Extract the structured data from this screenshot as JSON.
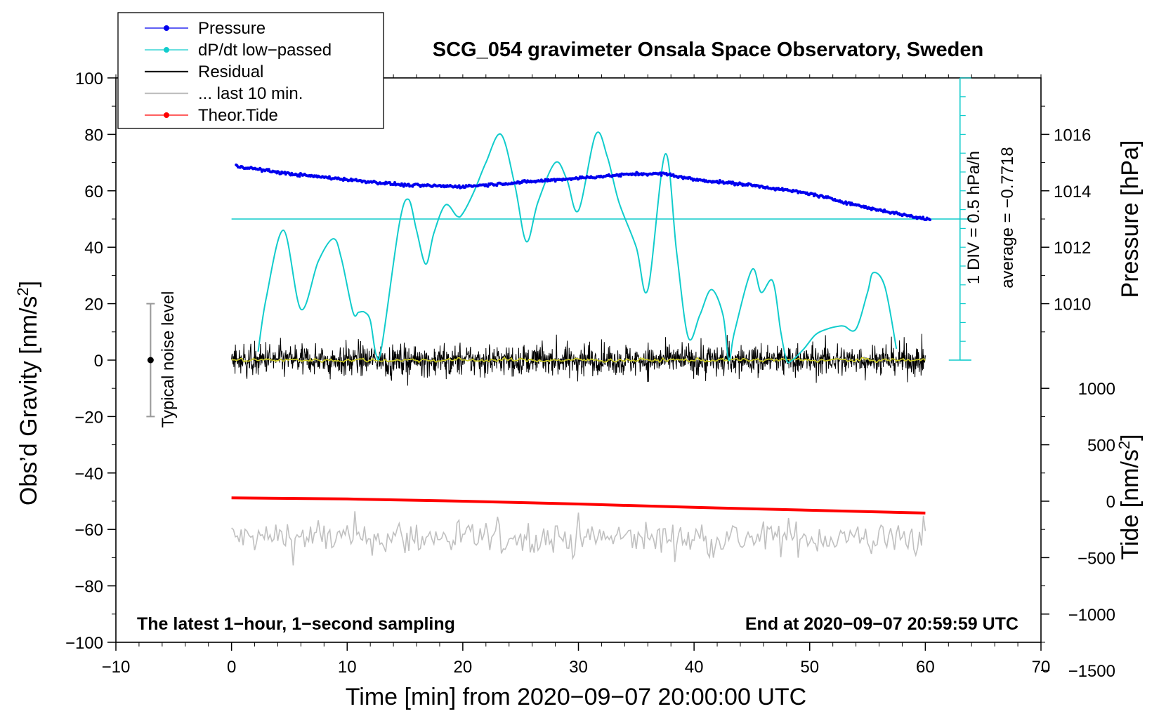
{
  "chart_data": {
    "type": "line",
    "title": "SCG_054 gravimeter Onsala Space Observatory, Sweden",
    "xlabel": "Time [min] from 2020−09−07 20:00:00 UTC",
    "xlim": [
      -10,
      70
    ],
    "x_ticks": [
      "−10",
      "0",
      "10",
      "20",
      "30",
      "40",
      "50",
      "60",
      "70"
    ],
    "x_tick_values": [
      -10,
      0,
      10,
      20,
      30,
      40,
      50,
      60,
      70
    ],
    "left_axis": {
      "label": "Obs’d Gravity [nm/s",
      "label_sup": "2",
      "label_end": "]",
      "ylim": [
        -100,
        100
      ],
      "ticks": [
        "−100",
        "−80",
        "−60",
        "−40",
        "−20",
        "0",
        "20",
        "40",
        "60",
        "80",
        "100"
      ],
      "tick_values": [
        -100,
        -80,
        -60,
        -40,
        -20,
        0,
        20,
        40,
        60,
        80,
        100
      ]
    },
    "pressure_axis": {
      "label": "Pressure [hPa]",
      "ticks": [
        "1010",
        "1012",
        "1014",
        "1016"
      ],
      "tick_values": [
        1010,
        1012,
        1014,
        1016
      ],
      "gravity_at_1010": 20,
      "gravity_per_hpa": 10
    },
    "tide_axis": {
      "label": "Tide [nm/s",
      "label_sup": "2",
      "label_end": "]",
      "ticks": [
        "−1500",
        "−1000",
        "−500",
        "0",
        "500",
        "1000"
      ],
      "tick_values": [
        -1500,
        -1000,
        -500,
        0,
        500,
        1000
      ],
      "gravity_at_0": -50,
      "gravity_per_unit": 0.04
    },
    "dpdt_scale": {
      "label": "1 DIV = 0.5 hPa/h",
      "average_label": "average = −0.7718",
      "baseline_gravity": 50,
      "scale_top": 100,
      "scale_bottom": 0,
      "divisions": 15,
      "x_min": 63
    },
    "noise_level": {
      "label": "Typical noise level",
      "x": -7,
      "center": 0,
      "half_range": 20
    },
    "legend": [
      {
        "name": "Pressure",
        "color": "#0000ee",
        "style": "line-dot"
      },
      {
        "name": "dP/dt low−passed",
        "color": "#11cccc",
        "style": "line-dot"
      },
      {
        "name": "Residual",
        "color": "#000000",
        "style": "line"
      },
      {
        "name": "... last 10 min.",
        "color": "#c0c0c0",
        "style": "line"
      },
      {
        "name": "Theor.Tide",
        "color": "#ff0000",
        "style": "line-dot"
      }
    ],
    "series": [
      {
        "name": "Pressure",
        "axis": "pressure",
        "color": "#0000ee",
        "x": [
          0,
          5,
          10,
          15,
          20,
          25,
          30,
          35,
          37.5,
          40,
          45,
          50,
          55,
          60
        ],
        "y": [
          1014.9,
          1014.6,
          1014.4,
          1014.2,
          1014.15,
          1014.3,
          1014.45,
          1014.6,
          1014.6,
          1014.4,
          1014.2,
          1013.9,
          1013.4,
          1013.0
        ]
      },
      {
        "name": "dP/dt low−passed",
        "axis": "gravity",
        "color": "#11cccc",
        "x": [
          2.3,
          3,
          4.5,
          6,
          7.5,
          8.8,
          9.5,
          10.5,
          11,
          11.5,
          12,
          12.5,
          13,
          14.5,
          15.3,
          16,
          16.8,
          17.5,
          18.5,
          19.5,
          20,
          21,
          22,
          23.3,
          24.5,
          25.5,
          26.5,
          28,
          29,
          30,
          31.5,
          32.5,
          33.5,
          35,
          36,
          37.5,
          38.5,
          39.5,
          40.5,
          41.5,
          42.5,
          43,
          43.5,
          45,
          45.8,
          46.8,
          47.5,
          48,
          48.5,
          49.5,
          50.5,
          51.5,
          52.5,
          53,
          54,
          55,
          55.5,
          56.5,
          57.5
        ],
        "y": [
          3,
          22,
          46,
          18,
          35,
          43,
          36,
          17,
          17,
          17,
          14,
          2,
          5,
          48,
          57,
          46,
          34,
          45,
          55,
          51,
          52,
          60,
          70,
          80,
          62,
          42,
          56,
          70,
          64,
          53,
          80,
          72,
          56,
          40,
          25,
          73,
          38,
          8,
          16,
          25,
          16,
          0,
          10,
          32,
          24,
          28,
          10,
          0,
          0,
          4,
          9,
          11,
          12,
          12,
          11,
          24,
          31,
          26,
          4
        ]
      },
      {
        "name": "Residual",
        "axis": "gravity",
        "color": "#000000",
        "x_range": [
          0,
          60
        ],
        "amplitude": 4
      },
      {
        "name": "Residual smoothed",
        "axis": "gravity",
        "color": "#cccc22",
        "x_range": [
          0,
          60
        ],
        "amplitude": 1
      },
      {
        "name": "... last 10 min.",
        "axis": "gravity",
        "color": "#c0c0c0",
        "x_range": [
          0,
          60
        ],
        "center": -63,
        "amplitude": 5
      },
      {
        "name": "Theor.Tide",
        "axis": "tide",
        "color": "#ff0000",
        "x": [
          0,
          10,
          20,
          30,
          40,
          50,
          60
        ],
        "y": [
          30,
          20,
          0,
          -25,
          -55,
          -80,
          -105
        ]
      }
    ],
    "bottom_left_label": "The latest 1−hour, 1−second sampling",
    "bottom_right_label": "End at 2020−09−07 20:59:59 UTC"
  },
  "colors": {
    "pressure": "#0000ee",
    "dpdt": "#11cccc",
    "residual": "#000000",
    "smooth": "#cccc22",
    "last10": "#c0c0c0",
    "tide": "#ff0000",
    "noise": "#999999"
  }
}
